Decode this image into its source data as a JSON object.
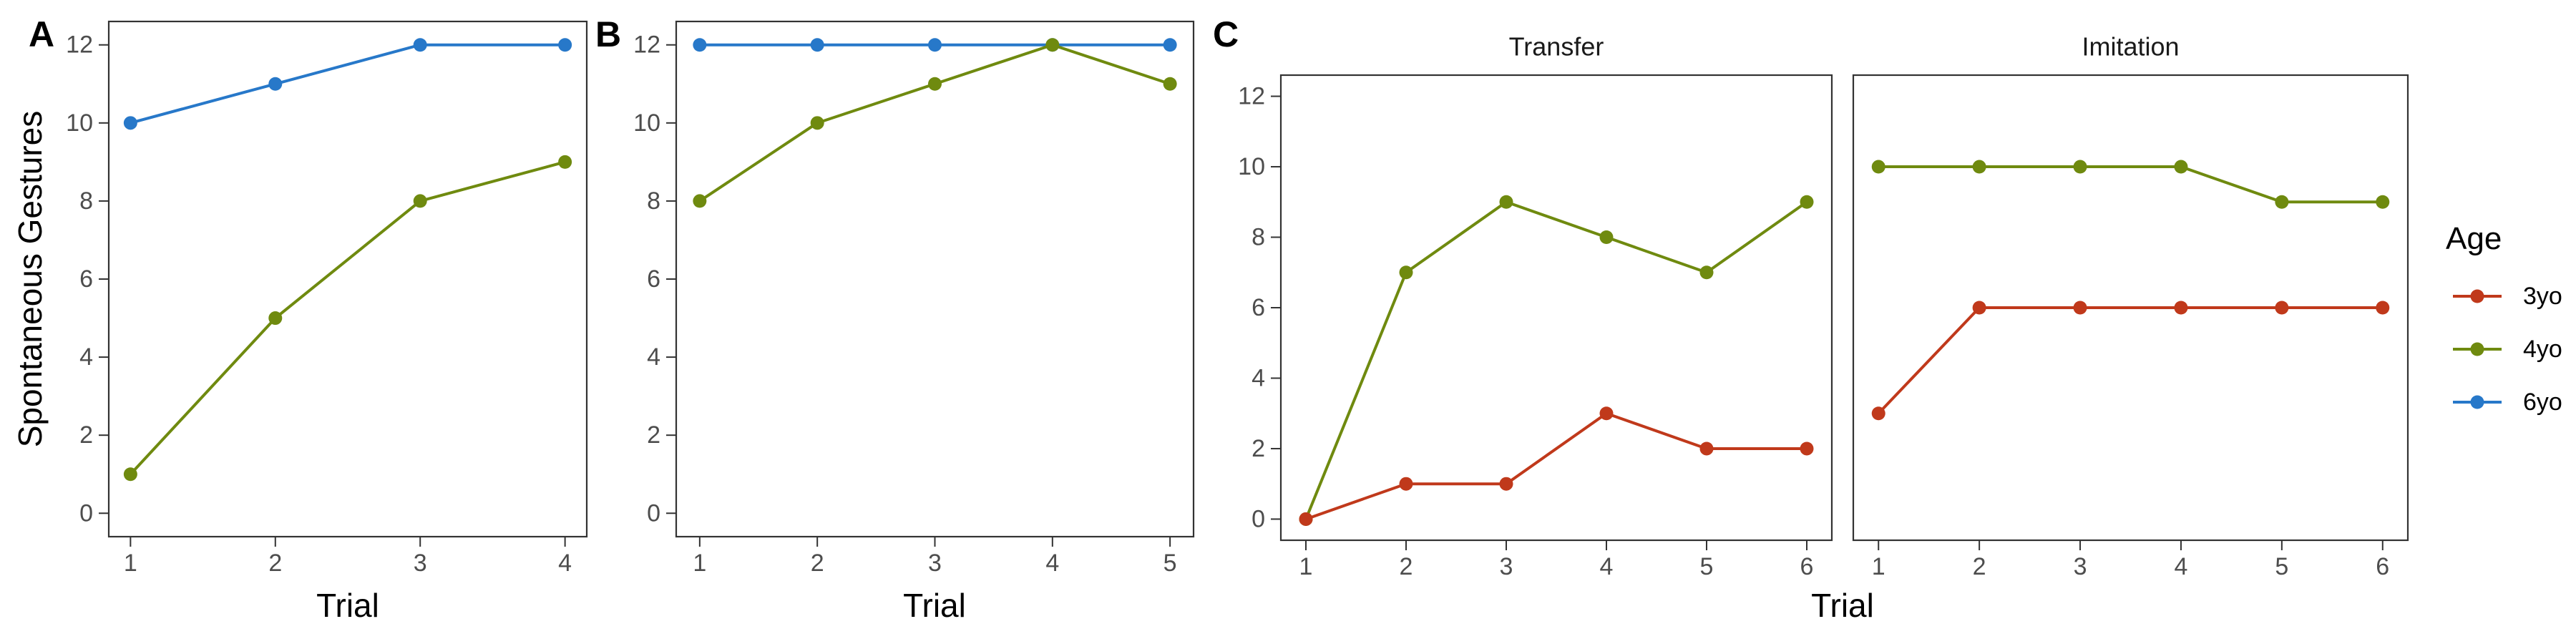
{
  "colors": {
    "3yo": "#c0391b",
    "4yo": "#6f8a0f",
    "6yo": "#2778c9"
  },
  "legend": {
    "title": "Age",
    "items": [
      "3yo",
      "4yo",
      "6yo"
    ]
  },
  "chart_data": [
    {
      "panel": "A",
      "type": "line",
      "strip_title": "",
      "xlabel": "Trial",
      "ylabel": "Spontaneous Gestures",
      "x": [
        1,
        2,
        3,
        4
      ],
      "xlim": [
        0.85,
        4.15
      ],
      "ylim": [
        -0.6,
        12.6
      ],
      "yticks": [
        0,
        2,
        4,
        6,
        8,
        10,
        12
      ],
      "series": [
        {
          "name": "6yo",
          "values": [
            10,
            11,
            12,
            12
          ]
        },
        {
          "name": "4yo",
          "values": [
            1,
            5,
            8,
            9
          ]
        }
      ]
    },
    {
      "panel": "B",
      "type": "line",
      "strip_title": "",
      "xlabel": "Trial",
      "ylabel": "",
      "x": [
        1,
        2,
        3,
        4,
        5
      ],
      "xlim": [
        0.8,
        5.2
      ],
      "ylim": [
        -0.6,
        12.6
      ],
      "yticks": [
        0,
        2,
        4,
        6,
        8,
        10,
        12
      ],
      "series": [
        {
          "name": "6yo",
          "values": [
            12,
            12,
            12,
            12,
            12
          ]
        },
        {
          "name": "4yo",
          "values": [
            8,
            10,
            11,
            12,
            11
          ]
        }
      ]
    },
    {
      "panel": "C",
      "type": "line",
      "strip_title": "Transfer",
      "xlabel": "Trial",
      "ylabel": "",
      "x": [
        1,
        2,
        3,
        4,
        5,
        6
      ],
      "xlim": [
        0.75,
        6.25
      ],
      "ylim": [
        -0.6,
        12.6
      ],
      "yticks": [
        0,
        2,
        4,
        6,
        8,
        10,
        12
      ],
      "series": [
        {
          "name": "4yo",
          "values": [
            0,
            7,
            9,
            8,
            7,
            9
          ]
        },
        {
          "name": "3yo",
          "values": [
            0,
            1,
            1,
            3,
            2,
            2
          ]
        }
      ]
    },
    {
      "panel": "",
      "type": "line",
      "strip_title": "Imitation",
      "xlabel": "",
      "ylabel": "",
      "x": [
        1,
        2,
        3,
        4,
        5,
        6
      ],
      "xlim": [
        0.75,
        6.25
      ],
      "ylim": [
        -0.6,
        12.6
      ],
      "yticks": [],
      "series": [
        {
          "name": "4yo",
          "values": [
            10,
            10,
            10,
            10,
            9,
            9
          ]
        },
        {
          "name": "3yo",
          "values": [
            3,
            6,
            6,
            6,
            6,
            6
          ]
        }
      ]
    }
  ]
}
